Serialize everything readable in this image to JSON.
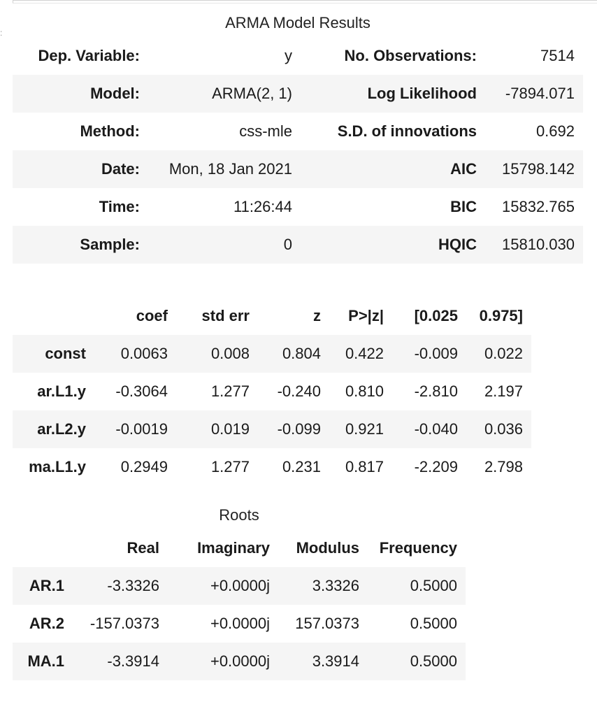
{
  "title": "ARMA Model Results",
  "summary": {
    "rows": [
      {
        "l_label": "Dep. Variable:",
        "l_value": "y",
        "r_label": "No. Observations:",
        "r_value": "7514"
      },
      {
        "l_label": "Model:",
        "l_value": "ARMA(2, 1)",
        "r_label": "Log Likelihood",
        "r_value": "-7894.071"
      },
      {
        "l_label": "Method:",
        "l_value": "css-mle",
        "r_label": "S.D. of innovations",
        "r_value": "0.692"
      },
      {
        "l_label": "Date:",
        "l_value": "Mon, 18 Jan 2021",
        "r_label": "AIC",
        "r_value": "15798.142"
      },
      {
        "l_label": "Time:",
        "l_value": "11:26:44",
        "r_label": "BIC",
        "r_value": "15832.765"
      },
      {
        "l_label": "Sample:",
        "l_value": "0",
        "r_label": "HQIC",
        "r_value": "15810.030"
      }
    ]
  },
  "coef": {
    "headers": [
      "coef",
      "std err",
      "z",
      "P>|z|",
      "[0.025",
      "0.975]"
    ],
    "rows": [
      {
        "name": "const",
        "values": [
          "0.0063",
          "0.008",
          "0.804",
          "0.422",
          "-0.009",
          "0.022"
        ]
      },
      {
        "name": "ar.L1.y",
        "values": [
          "-0.3064",
          "1.277",
          "-0.240",
          "0.810",
          "-2.810",
          "2.197"
        ]
      },
      {
        "name": "ar.L2.y",
        "values": [
          "-0.0019",
          "0.019",
          "-0.099",
          "0.921",
          "-0.040",
          "0.036"
        ]
      },
      {
        "name": "ma.L1.y",
        "values": [
          "0.2949",
          "1.277",
          "0.231",
          "0.817",
          "-2.209",
          "2.798"
        ]
      }
    ]
  },
  "roots": {
    "caption": "Roots",
    "headers": [
      "Real",
      "Imaginary",
      "Modulus",
      "Frequency"
    ],
    "rows": [
      {
        "name": "AR.1",
        "values": [
          "-3.3326",
          "+0.0000j",
          "3.3326",
          "0.5000"
        ]
      },
      {
        "name": "AR.2",
        "values": [
          "-157.0373",
          "+0.0000j",
          "157.0373",
          "0.5000"
        ]
      },
      {
        "name": "MA.1",
        "values": [
          "-3.3914",
          "+0.0000j",
          "3.3914",
          "0.5000"
        ]
      }
    ]
  }
}
